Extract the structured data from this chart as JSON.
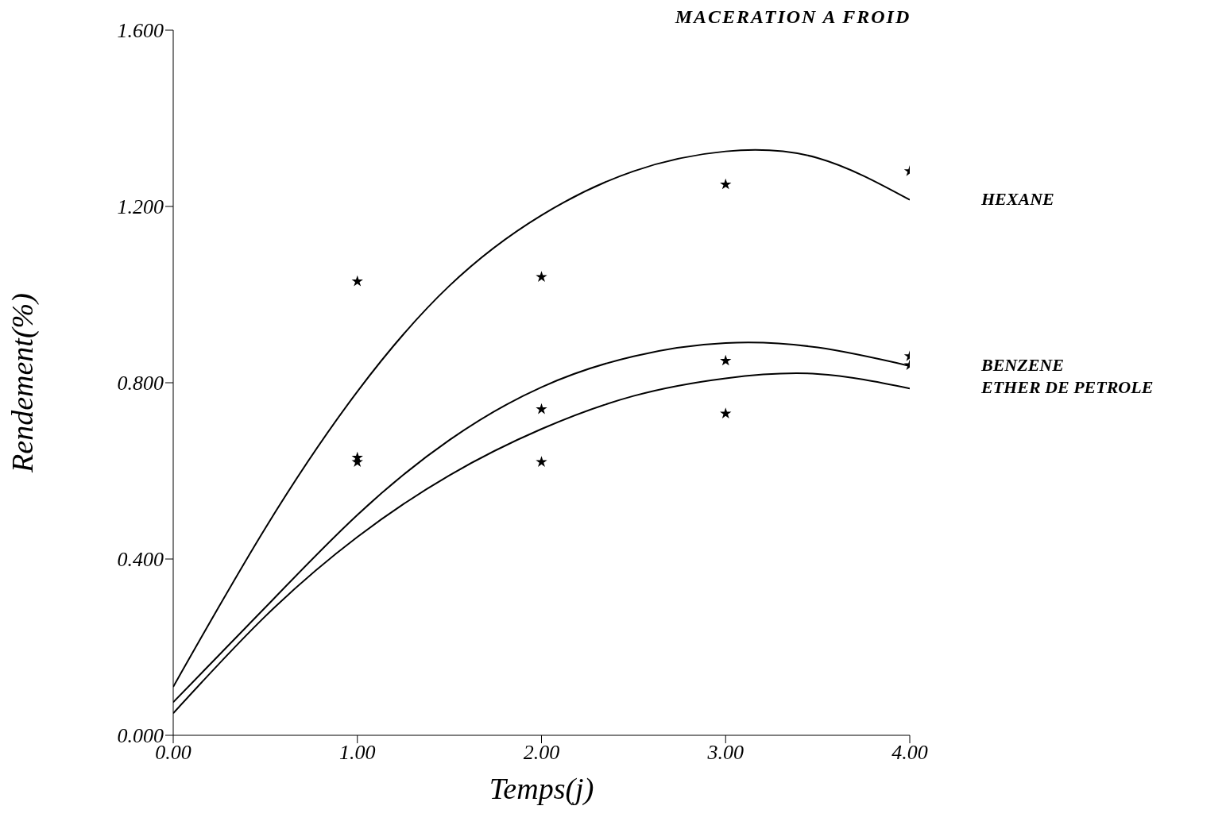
{
  "chart_data": {
    "type": "line",
    "title": "MACERATION A FROID",
    "xlabel": "Temps(j)",
    "ylabel": "Rendement(%)",
    "xlim": [
      0,
      4
    ],
    "xticks": [
      {
        "value": 0,
        "label": "0.00"
      },
      {
        "value": 1,
        "label": "1.00"
      },
      {
        "value": 2,
        "label": "2.00"
      },
      {
        "value": 3,
        "label": "3.00"
      },
      {
        "value": 4,
        "label": "4.00"
      }
    ],
    "ylim": [
      0,
      1.6
    ],
    "yticks": [
      {
        "value": 0,
        "label": "0.000"
      },
      {
        "value": 0.4,
        "label": "0.400"
      },
      {
        "value": 0.8,
        "label": "0.800"
      },
      {
        "value": 1.2,
        "label": "1.200"
      },
      {
        "value": 1.6,
        "label": "1.600"
      }
    ],
    "grid": false,
    "line_style": "solid",
    "series": [
      {
        "name": "HEXANE",
        "color": "#000000",
        "marker": "none",
        "x": [
          0,
          0.5,
          1,
          1.5,
          2,
          2.5,
          3,
          3.5,
          4
        ],
        "values": [
          0.11,
          0.47,
          0.78,
          1.02,
          1.18,
          1.28,
          1.325,
          1.31,
          1.215
        ]
      },
      {
        "name": "BENZENE",
        "color": "#000000",
        "marker": "none",
        "x": [
          0,
          0.5,
          1,
          1.5,
          2,
          2.5,
          3,
          3.5,
          4
        ],
        "values": [
          0.075,
          0.29,
          0.5,
          0.67,
          0.79,
          0.86,
          0.89,
          0.88,
          0.838
        ]
      },
      {
        "name": "ETHER DE PETROLE",
        "color": "#000000",
        "marker": "none",
        "x": [
          0,
          0.5,
          1,
          1.5,
          2,
          2.5,
          3,
          3.5,
          4
        ],
        "values": [
          0.05,
          0.27,
          0.45,
          0.59,
          0.695,
          0.77,
          0.81,
          0.82,
          0.787
        ]
      },
      {
        "type": "scatter",
        "color": "#000000",
        "marker": "star",
        "x": [
          1,
          2,
          3,
          4
        ],
        "values": [
          1.03,
          1.04,
          1.25,
          1.28
        ]
      },
      {
        "type": "scatter",
        "color": "#000000",
        "marker": "star",
        "x": [
          1,
          2,
          3,
          4
        ],
        "values": [
          0.62,
          0.74,
          0.85,
          0.86
        ]
      },
      {
        "type": "scatter",
        "color": "#000000",
        "marker": "star",
        "x": [
          1,
          2,
          3,
          4
        ],
        "values": [
          0.63,
          0.62,
          0.73,
          0.84
        ]
      }
    ]
  }
}
